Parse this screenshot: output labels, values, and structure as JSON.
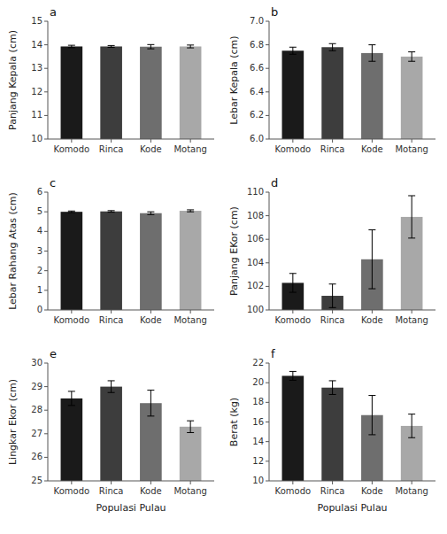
{
  "chart_data": [
    {
      "type": "bar",
      "title": "a",
      "ylabel": "Panjang Kepala (cm)",
      "categories": [
        "Komodo",
        "Rinca",
        "Kode",
        "Motang"
      ],
      "values": [
        13.93,
        13.93,
        13.92,
        13.93
      ],
      "errors": [
        0.05,
        0.04,
        0.09,
        0.06
      ],
      "colors": [
        "#1a1a1a",
        "#3d3d3d",
        "#6e6e6e",
        "#a8a8a8"
      ],
      "ylim": [
        10,
        15
      ],
      "yticks": [
        10,
        11,
        12,
        13,
        14,
        15
      ],
      "grid": false
    },
    {
      "type": "bar",
      "title": "b",
      "ylabel": "Lebar Kepala (cm)",
      "categories": [
        "Komodo",
        "Rinca",
        "Kode",
        "Motang"
      ],
      "values": [
        6.75,
        6.78,
        6.73,
        6.7
      ],
      "errors": [
        0.03,
        0.03,
        0.07,
        0.04
      ],
      "colors": [
        "#1a1a1a",
        "#3d3d3d",
        "#6e6e6e",
        "#a8a8a8"
      ],
      "ylim": [
        6.0,
        7.0
      ],
      "yticks": [
        {
          "value": 6.0,
          "label": "6.0"
        },
        6.2,
        6.4,
        6.6,
        6.8,
        {
          "value": 7.0,
          "label": "7.0"
        }
      ],
      "grid": false
    },
    {
      "type": "bar",
      "title": "c",
      "ylabel": "Lebar Rahang Atas (cm)",
      "categories": [
        "Komodo",
        "Rinca",
        "Kode",
        "Motang"
      ],
      "values": [
        5.0,
        5.02,
        4.93,
        5.05
      ],
      "errors": [
        0.04,
        0.04,
        0.07,
        0.05
      ],
      "colors": [
        "#1a1a1a",
        "#3d3d3d",
        "#6e6e6e",
        "#a8a8a8"
      ],
      "ylim": [
        0,
        6
      ],
      "yticks": [
        0,
        1,
        2,
        3,
        4,
        5,
        6
      ],
      "grid": false
    },
    {
      "type": "bar",
      "title": "d",
      "ylabel": "Panjang EKor (cm)",
      "categories": [
        "Komodo",
        "Rinca",
        "Kode",
        "Motang"
      ],
      "values": [
        102.3,
        101.2,
        104.3,
        107.9
      ],
      "errors": [
        0.8,
        1.0,
        2.5,
        1.8
      ],
      "colors": [
        "#1a1a1a",
        "#3d3d3d",
        "#6e6e6e",
        "#a8a8a8"
      ],
      "ylim": [
        100,
        110
      ],
      "yticks": [
        100,
        102,
        104,
        106,
        108,
        110
      ],
      "grid": false
    },
    {
      "type": "bar",
      "title": "e",
      "ylabel": "Lingkar Ekor (cm)",
      "xlabel": "Populasi Pulau",
      "categories": [
        "Komodo",
        "Rinca",
        "Kode",
        "Motang"
      ],
      "values": [
        28.5,
        29.0,
        28.3,
        27.3
      ],
      "errors": [
        0.3,
        0.25,
        0.55,
        0.25
      ],
      "colors": [
        "#1a1a1a",
        "#3d3d3d",
        "#6e6e6e",
        "#a8a8a8"
      ],
      "ylim": [
        25,
        30
      ],
      "yticks": [
        25,
        26,
        27,
        28,
        29,
        30
      ],
      "grid": false
    },
    {
      "type": "bar",
      "title": "f",
      "ylabel": "Berat (kg)",
      "xlabel": "Populasi Pulau",
      "categories": [
        "Komodo",
        "Rinca",
        "Kode",
        "Motang"
      ],
      "values": [
        20.7,
        19.5,
        16.7,
        15.6
      ],
      "errors": [
        0.45,
        0.7,
        2.0,
        1.2
      ],
      "colors": [
        "#1a1a1a",
        "#3d3d3d",
        "#6e6e6e",
        "#a8a8a8"
      ],
      "ylim": [
        10,
        22
      ],
      "yticks": [
        10,
        12,
        14,
        16,
        18,
        20,
        22
      ],
      "grid": false
    }
  ]
}
